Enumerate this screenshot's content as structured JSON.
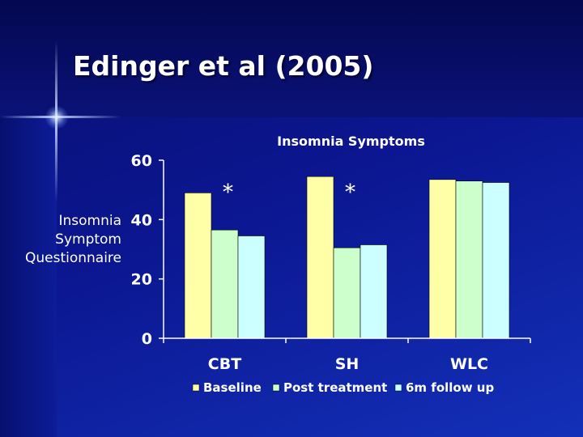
{
  "slide": {
    "title": "Edinger et al (2005)",
    "y_label_lines": [
      "Insomnia",
      "Symptom",
      "Questionnaire"
    ]
  },
  "chart_data": {
    "type": "bar",
    "title": "Insomnia Symptoms",
    "xlabel": "",
    "ylabel": "Insomnia Symptom Questionnaire",
    "categories": [
      "CBT",
      "SH",
      "WLC"
    ],
    "series": [
      {
        "name": "Baseline",
        "values": [
          49,
          54.5,
          53.5
        ],
        "color": "#ffffa8"
      },
      {
        "name": "Post treatment",
        "values": [
          36.5,
          30.5,
          53
        ],
        "color": "#ccffcc"
      },
      {
        "name": "6m follow up",
        "values": [
          34.5,
          31.5,
          52.5
        ],
        "color": "#ccffff"
      }
    ],
    "ylim": [
      0,
      60
    ],
    "yticks": [
      0,
      20,
      40,
      60
    ],
    "annotations": [
      {
        "text": "*",
        "category": "CBT"
      },
      {
        "text": "*",
        "category": "SH"
      }
    ],
    "grid": false,
    "legend_position": "bottom",
    "colors": {
      "text": "#ffffff",
      "axis": "#ffffff"
    }
  }
}
